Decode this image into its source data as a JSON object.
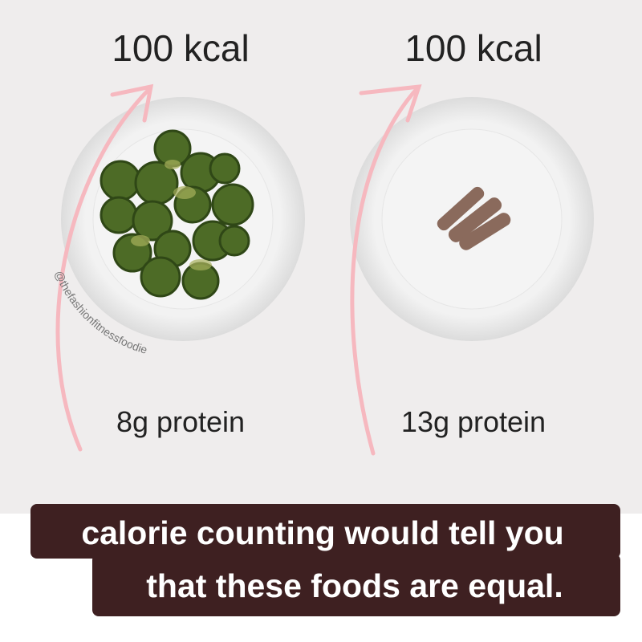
{
  "plates": [
    {
      "calories": "100 kcal",
      "protein": "8g protein"
    },
    {
      "calories": "100 kcal",
      "protein": "13g protein"
    }
  ],
  "watermark": "@thefashionfitnessfoodie",
  "caption": {
    "lines": [
      "calorie counting would tell you",
      "that these foods are equal."
    ]
  }
}
